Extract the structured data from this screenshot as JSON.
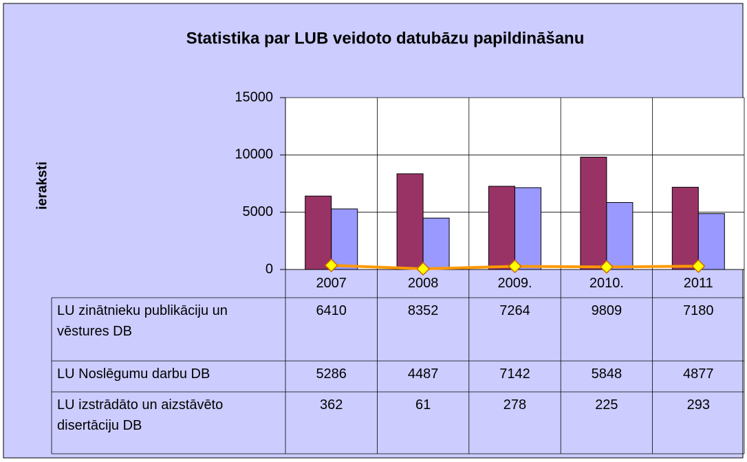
{
  "chart_data": {
    "type": "bar",
    "title": "Statistika par LUB veidoto datubāzu papildināšanu",
    "y_label": "ieraksti",
    "categories": [
      "2007",
      "2008",
      "2009.",
      "2010.",
      "2011"
    ],
    "series": [
      {
        "name": "LU zinātnieku publikāciju un vēstures DB",
        "type": "bar",
        "color": "#993366",
        "values": [
          6410,
          8352,
          7264,
          9809,
          7180
        ]
      },
      {
        "name": "LU Noslēgumu darbu DB",
        "type": "bar",
        "color": "#9999ff",
        "values": [
          5286,
          4487,
          7142,
          5848,
          4877
        ]
      },
      {
        "name": "LU izstrādāto un aizstāvēto disertāciju DB",
        "type": "line",
        "color": "#ff9900",
        "marker_color": "#ffff00",
        "values": [
          362,
          61,
          278,
          225,
          293
        ]
      }
    ],
    "ylim": [
      0,
      15000
    ],
    "yticks": [
      0,
      5000,
      10000,
      15000
    ],
    "grid": true
  }
}
